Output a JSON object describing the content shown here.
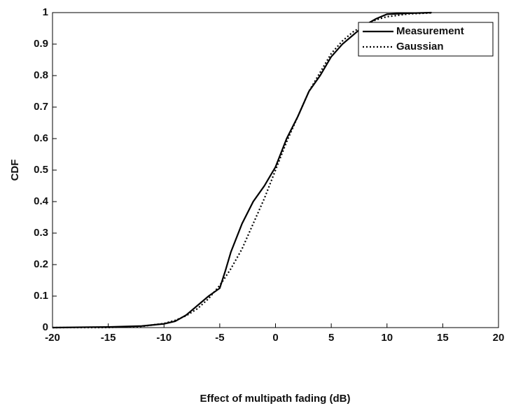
{
  "chart_data": {
    "type": "line",
    "xlabel": "Effect of multipath fading (dB)",
    "ylabel": "CDF",
    "x": [
      -20,
      -15,
      -12,
      -10,
      -9,
      -8,
      -7,
      -6,
      -5,
      -4.5,
      -4,
      -3,
      -2,
      -1,
      0,
      1,
      2,
      3,
      4,
      5,
      6,
      7,
      8,
      9,
      10,
      12,
      14
    ],
    "series": [
      {
        "name": "Measurement",
        "color": "#000000",
        "linestyle": "solid",
        "values": [
          0,
          0.002,
          0.005,
          0.012,
          0.02,
          0.04,
          0.07,
          0.1,
          0.125,
          0.18,
          0.24,
          0.33,
          0.4,
          0.45,
          0.51,
          0.6,
          0.67,
          0.75,
          0.8,
          0.86,
          0.9,
          0.93,
          0.96,
          0.98,
          0.995,
          0.998,
          1
        ]
      },
      {
        "name": "Gaussian",
        "color": "#000000",
        "linestyle": "dotted",
        "values": [
          0,
          0.0004,
          0.004,
          0.013,
          0.023,
          0.038,
          0.06,
          0.092,
          0.134,
          0.16,
          0.187,
          0.25,
          0.33,
          0.41,
          0.5,
          0.59,
          0.67,
          0.75,
          0.81,
          0.87,
          0.91,
          0.94,
          0.96,
          0.977,
          0.987,
          0.996,
          0.999
        ]
      }
    ],
    "xlim": [
      -20,
      20
    ],
    "xticks": [
      -20,
      -15,
      -10,
      -5,
      0,
      5,
      10,
      15,
      20
    ],
    "ylim": [
      0,
      1
    ],
    "yticks": [
      0,
      0.1,
      0.2,
      0.3,
      0.4,
      0.5,
      0.6,
      0.7,
      0.8,
      0.9,
      1
    ],
    "legend": "top-right",
    "grid": false
  }
}
